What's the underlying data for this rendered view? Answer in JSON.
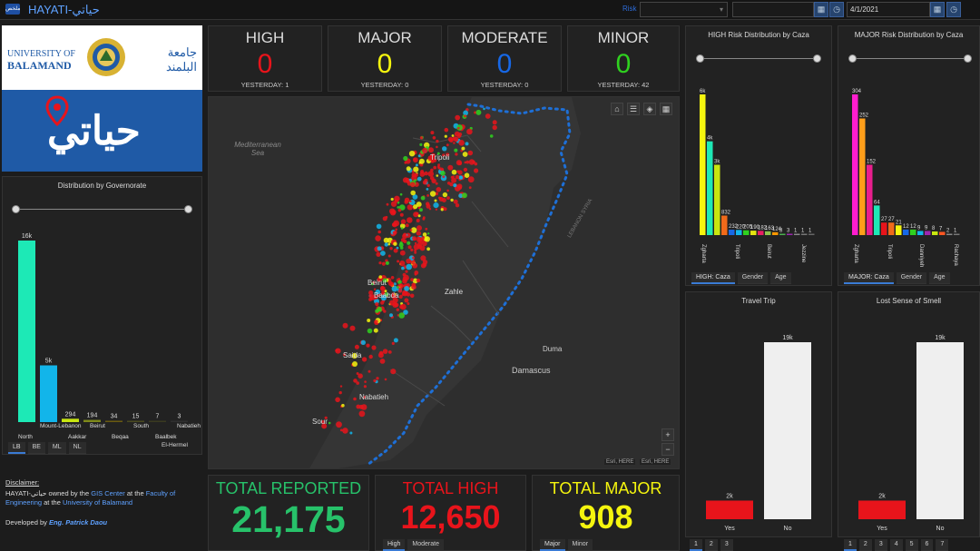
{
  "header": {
    "menu_label": "ملخص",
    "title": "HAYATI-حياتي",
    "risk_label": "Risk",
    "date_value": "4/1/2021"
  },
  "logos": {
    "university_en_1": "UNIVERSITY OF",
    "university_en_2": "BALAMAND",
    "university_ar_1": "جامعة",
    "university_ar_2": "البلمند",
    "app_logo_text": "حياتي"
  },
  "kpis": [
    {
      "label": "HIGH",
      "value": "0",
      "yesterday": "YESTERDAY: 1",
      "color": "#e8141b"
    },
    {
      "label": "MAJOR",
      "value": "0",
      "yesterday": "YESTERDAY: 0",
      "color": "#f5f50e"
    },
    {
      "label": "MODERATE",
      "value": "0",
      "yesterday": "YESTERDAY: 0",
      "color": "#1768e6"
    },
    {
      "label": "MINOR",
      "value": "0",
      "yesterday": "YESTERDAY: 42",
      "color": "#2fd11f"
    }
  ],
  "governorate": {
    "title": "Distribution by Governorate",
    "tabs": [
      "LB",
      "BE",
      "ML",
      "NL"
    ],
    "bars": [
      {
        "value_label": "16k",
        "value": 16000,
        "color": "#1de9b6"
      },
      {
        "value_label": "5k",
        "value": 5000,
        "color": "#12b5ea"
      },
      {
        "value_label": "294",
        "value": 294,
        "color": "#c8e610"
      },
      {
        "value_label": "194",
        "value": 194,
        "color": "#7f8a1a"
      },
      {
        "value_label": "34",
        "value": 34,
        "color": "#6a5a10"
      },
      {
        "value_label": "15",
        "value": 15,
        "color": "#4a4a20"
      },
      {
        "value_label": "7",
        "value": 7,
        "color": "#3a3a20"
      },
      {
        "value_label": "3",
        "value": 3,
        "color": "#303030"
      }
    ],
    "labels": [
      {
        "text": "North"
      },
      {
        "text": "Mount-Lebanon"
      },
      {
        "text": "Aakkar"
      },
      {
        "text": "Beirut"
      },
      {
        "text": "Beqaa"
      },
      {
        "text": "South"
      },
      {
        "text": "Baalbek El-Hermel"
      },
      {
        "text": "Nabatieh"
      }
    ]
  },
  "map": {
    "labels": {
      "sea": "Mediterranean Sea",
      "tripoli": "Tripoli",
      "beirut": "Beirut",
      "baabda": "Baabda",
      "zahle": "Zahle",
      "saida": "Saida",
      "nabatieh": "Nabatieh",
      "sour": "Sour",
      "damascus": "Damascus",
      "duma": "Duma",
      "lebanon_syria": "LEBANON SYRIA"
    },
    "attribution": "Esri, HERE",
    "attribution2": "Esri, HERE"
  },
  "totals": [
    {
      "label": "TOTAL REPORTED",
      "value": "21,175",
      "label_color": "#27c26a",
      "value_color": "#27c26a"
    },
    {
      "label": "TOTAL HIGH",
      "value": "12,650",
      "label_color": "#e8141b",
      "value_color": "#e8141b"
    },
    {
      "label": "TOTAL MAJOR",
      "value": "908",
      "label_color": "#f5f50e",
      "value_color": "#f5f50e"
    }
  ],
  "total_high_tabs": [
    "High",
    "Moderate"
  ],
  "total_major_tabs": [
    "Major",
    "Minor"
  ],
  "disclaimer": {
    "heading": "Disclaimer:",
    "line1a": "HAYATI-حياتي owned by the ",
    "gis": "GIS Center",
    "line1b": " at the ",
    "faculty": "Faculty of Engineering",
    "line1c": " at the ",
    "uob": "University of Balamand",
    "dev_prefix": "Developed by ",
    "dev_name": "Eng. Patrick Daou"
  },
  "high_caza": {
    "title": "HIGH Risk Distribution by Caza",
    "tabs": [
      "HIGH: Caza",
      "Gender",
      "Age"
    ],
    "value_labels": [
      "6k",
      "4k",
      "3k",
      "832",
      "232",
      "220",
      "205",
      "190",
      "182",
      "163",
      "124",
      "8",
      "3",
      "1",
      "1",
      "1"
    ],
    "values": [
      6000,
      4000,
      3000,
      832,
      232,
      220,
      205,
      190,
      182,
      163,
      124,
      8,
      3,
      1,
      1,
      1
    ],
    "colors": [
      "#f5f50e",
      "#1de9b6",
      "#c8e610",
      "#f06a1a",
      "#1768e6",
      "#12b5ea",
      "#2fd11f",
      "#e4e410",
      "#e91e63",
      "#8bc34a",
      "#ff9800",
      "#4caf50",
      "#9c27b0",
      "#888",
      "#777",
      "#666"
    ],
    "xlabels": [
      "Zgharta",
      "Tripoli",
      "Beirut",
      "Jezzine"
    ]
  },
  "major_caza": {
    "title": "MAJOR Risk Distribution by Caza",
    "tabs": [
      "MAJOR: Caza",
      "Gender",
      "Age"
    ],
    "value_labels": [
      "304",
      "252",
      "152",
      "64",
      "27",
      "27",
      "21",
      "12",
      "12",
      "9",
      "9",
      "8",
      "7",
      "2",
      "1"
    ],
    "values": [
      304,
      252,
      152,
      64,
      27,
      27,
      21,
      12,
      12,
      9,
      9,
      8,
      7,
      2,
      1
    ],
    "colors": [
      "#ff1dce",
      "#ff9e1a",
      "#e91e8e",
      "#1de9b6",
      "#e8141b",
      "#f06a1a",
      "#f5f50e",
      "#1768e6",
      "#2fd11f",
      "#12b5ea",
      "#9c27b0",
      "#c8e610",
      "#ff5722",
      "#888",
      "#777"
    ],
    "xlabels": [
      "Zgharta",
      "Tripoli",
      "Danniyeh",
      "Rachaya"
    ]
  },
  "travel": {
    "title": "Travel Trip",
    "yes_label": "2k",
    "no_label": "19k",
    "yes": 2000,
    "no": 19000,
    "cat_yes": "Yes",
    "cat_no": "No",
    "pages": [
      "1",
      "2",
      "3"
    ]
  },
  "smell": {
    "title": "Lost Sense of Smell",
    "yes_label": "2k",
    "no_label": "19k",
    "yes": 2000,
    "no": 19000,
    "cat_yes": "Yes",
    "cat_no": "No",
    "pages": [
      "1",
      "2",
      "3",
      "4",
      "5",
      "6",
      "7"
    ]
  }
}
